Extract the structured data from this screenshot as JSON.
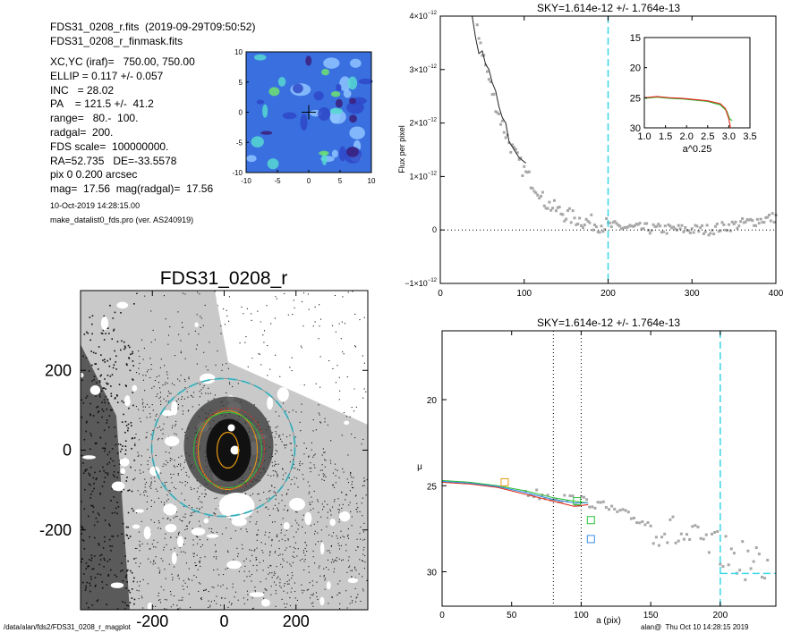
{
  "header": {
    "lines": [
      "FDS31_0208_r.fits  (2019-09-29T09:50:52)",
      "FDS31_0208_r_finmask.fits",
      "XC,YC (iraf)=   750.00, 750.00",
      "ELLIP = 0.117 +/- 0.057",
      "INC   = 28.02",
      "PA    = 121.5 +/-  41.2",
      "range=   80.-  100.",
      "radgal=  200.",
      "FDS scale=  100000000.",
      "RA=52.735   DE=-33.5578",
      "pix 0 0.200 arcsec",
      "mag=  17.56  mag(radgal)=  17.56"
    ],
    "date": "10-Oct-2019 14:28:15.00",
    "program": "make_datalist0_fds.pro (ver. AS240919)"
  },
  "footer": {
    "path": "/data/alan/fds2/FDS31_0208_r_magplot",
    "user": "alan@  Thu Oct 10 14:28:15 2019"
  },
  "colors": {
    "cyan": "#3ad6e6",
    "gray": "#a8a8a8",
    "green": "#2fbf3a",
    "red": "#e03020",
    "orange": "#e89a10",
    "blue": "#3a8ee6",
    "contour_bg": "#3a6fe0"
  },
  "chart_data": [
    {
      "id": "residual-contour",
      "type": "heatmap",
      "xticks": [
        "-10",
        "-5",
        "0",
        "5",
        "10"
      ],
      "yticks": [
        "10",
        "5",
        "0",
        "-5",
        "-10"
      ],
      "xlim": [
        -10,
        10
      ],
      "ylim": [
        -10,
        10
      ]
    },
    {
      "id": "sky-profile",
      "type": "scatter",
      "title": "SKY=1.614e-12 +/- 1.764e-13",
      "ylabel": "Flux per pixel",
      "xlim": [
        0,
        400
      ],
      "ylim": [
        -1e-12,
        4e-12
      ],
      "xticks": [
        "0",
        "100",
        "200",
        "300",
        "400"
      ],
      "yticks": [
        {
          "v": -1e-12,
          "m": "−1×10",
          "e": "−12"
        },
        {
          "v": 0,
          "m": "0",
          "e": ""
        },
        {
          "v": 1e-12,
          "m": "1×10",
          "e": "−12"
        },
        {
          "v": 2e-12,
          "m": "2×10",
          "e": "−12"
        },
        {
          "v": 3e-12,
          "m": "3×10",
          "e": "−12"
        },
        {
          "v": 4e-12,
          "m": "4×10",
          "e": "−12"
        }
      ],
      "radgal_line_x": 200,
      "zero_line_y": 0,
      "line_points": [
        [
          38,
          4e-12
        ],
        [
          42,
          3.6e-12
        ],
        [
          46,
          3.3e-12
        ],
        [
          50,
          3.35e-12
        ],
        [
          54,
          3.1e-12
        ],
        [
          58,
          3e-12
        ],
        [
          62,
          2.75e-12
        ],
        [
          66,
          2.6e-12
        ],
        [
          70,
          2.3e-12
        ],
        [
          74,
          2.1e-12
        ],
        [
          78,
          2e-12
        ],
        [
          82,
          1.65e-12
        ],
        [
          86,
          1.55e-12
        ],
        [
          90,
          1.45e-12
        ],
        [
          94,
          1.35e-12
        ],
        [
          98,
          1.3e-12
        ],
        [
          102,
          1.25e-12
        ]
      ],
      "inset": {
        "xlim": [
          1.0,
          3.5
        ],
        "ylim": [
          30,
          15
        ],
        "xticks": [
          "1.0",
          "1.5",
          "2.0",
          "2.5",
          "3.0",
          "3.5"
        ],
        "yticks": [
          "15",
          "20",
          "25",
          "30"
        ],
        "xlabel": "a^0.25",
        "series": [
          {
            "color": "#2fbf3a",
            "points": [
              [
                1.0,
                25.1
              ],
              [
                1.3,
                24.9
              ],
              [
                1.6,
                25.1
              ],
              [
                1.9,
                25.2
              ],
              [
                2.2,
                25.4
              ],
              [
                2.5,
                25.6
              ],
              [
                2.8,
                26.2
              ],
              [
                2.95,
                27.2
              ],
              [
                3.02,
                28.5
              ],
              [
                3.08,
                28.8
              ]
            ]
          },
          {
            "color": "#e03020",
            "points": [
              [
                1.0,
                25.0
              ],
              [
                1.3,
                24.8
              ],
              [
                1.6,
                25.0
              ],
              [
                1.9,
                25.1
              ],
              [
                2.2,
                25.3
              ],
              [
                2.5,
                25.5
              ],
              [
                2.8,
                26.0
              ],
              [
                2.92,
                26.8
              ],
              [
                3.0,
                28.5
              ],
              [
                3.04,
                30.0
              ]
            ]
          }
        ]
      }
    },
    {
      "id": "surface-brightness",
      "type": "scatter",
      "title": "SKY=1.614e-12 +/- 1.764e-13",
      "xlabel": "a (pix)",
      "ylabel": "μ",
      "xlim": [
        0,
        240
      ],
      "ylim": [
        32,
        16
      ],
      "xticks": [
        "0",
        "50",
        "100",
        "150",
        "200"
      ],
      "yticks": [
        "20",
        "25",
        "30"
      ],
      "range_lines_x": [
        80,
        100
      ],
      "radgal_line_x": 200,
      "sky_level_y": 30.1,
      "series": [
        {
          "color": "#2fbf3a",
          "points": [
            [
              0,
              24.7
            ],
            [
              20,
              24.8
            ],
            [
              40,
              25.0
            ],
            [
              60,
              25.3
            ],
            [
              80,
              25.7
            ],
            [
              95,
              25.9
            ],
            [
              105,
              26.0
            ]
          ]
        },
        {
          "color": "#e03020",
          "points": [
            [
              0,
              24.8
            ],
            [
              20,
              24.9
            ],
            [
              40,
              25.1
            ],
            [
              60,
              25.5
            ],
            [
              80,
              25.9
            ],
            [
              95,
              26.2
            ],
            [
              105,
              26.1
            ]
          ]
        },
        {
          "color": "#3a8ee6",
          "points": [
            [
              0,
              24.75
            ],
            [
              20,
              24.85
            ],
            [
              40,
              25.05
            ],
            [
              60,
              25.4
            ],
            [
              80,
              25.8
            ],
            [
              95,
              26.0
            ],
            [
              105,
              26.0
            ]
          ]
        }
      ],
      "markers": [
        {
          "x": 45,
          "y": 24.8,
          "color": "#e89a10"
        },
        {
          "x": 97,
          "y": 25.9,
          "color": "#2fbf3a"
        },
        {
          "x": 107,
          "y": 27.0,
          "color": "#2fbf3a"
        },
        {
          "x": 107,
          "y": 28.1,
          "color": "#3a8ee6"
        }
      ]
    },
    {
      "id": "galaxy-image",
      "type": "scatter",
      "title": "FDS31_0208_r",
      "xlim": [
        -400,
        400
      ],
      "ylim": [
        -400,
        400
      ],
      "xticks": [
        "-200",
        "0",
        "200"
      ],
      "yticks": [
        "200",
        "0",
        "-200"
      ]
    }
  ]
}
